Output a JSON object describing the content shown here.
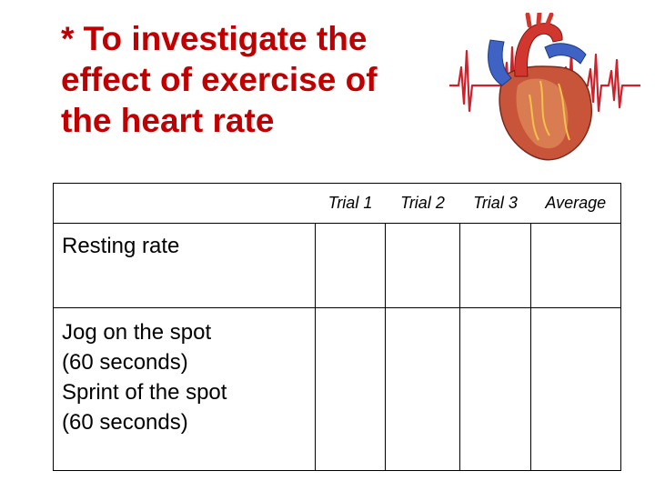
{
  "slide": {
    "title_lines": [
      "* To investigate the",
      "effect of exercise of",
      "the heart rate"
    ]
  },
  "table": {
    "header_blank": "",
    "columns": [
      "Trial 1",
      "Trial 2",
      "Trial 3",
      "Average"
    ],
    "rows": [
      {
        "label_lines": [
          "Resting rate"
        ],
        "cells": [
          "",
          "",
          "",
          ""
        ]
      },
      {
        "label_lines": [
          "Jog on the spot",
          "(60 seconds)",
          "Sprint of the spot",
          "(60 seconds)"
        ],
        "cells": [
          "",
          "",
          "",
          ""
        ]
      }
    ]
  },
  "graphic": {
    "icon": "anatomical-heart-with-ecg-trace",
    "colors": {
      "ecg_line": "#d0202a",
      "heart_body": "#c8553a",
      "vessel_blue": "#3e63c4",
      "vessel_red": "#d2372f"
    }
  }
}
